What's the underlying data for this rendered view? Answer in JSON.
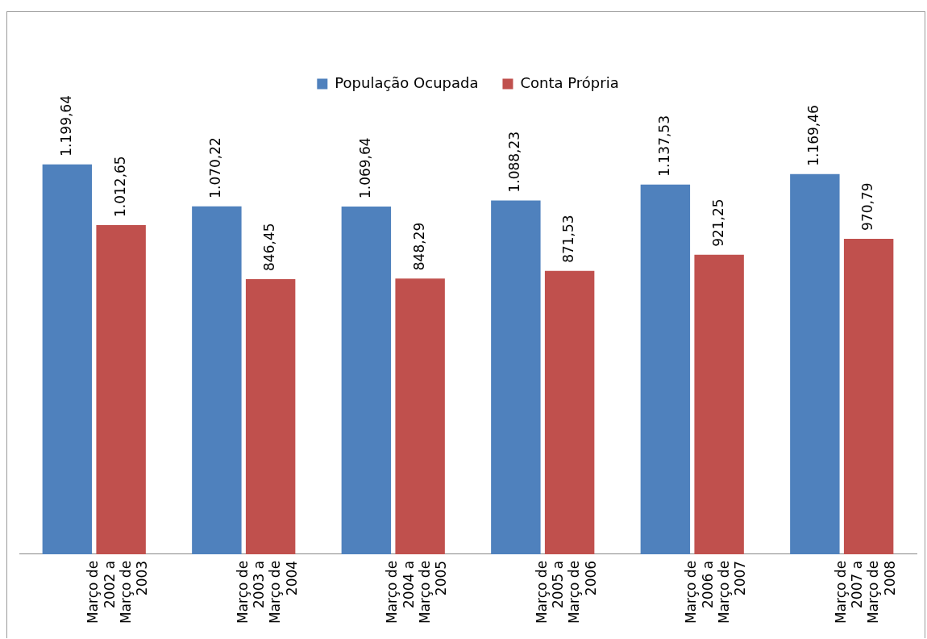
{
  "chart_data": {
    "type": "bar",
    "categories": [
      "Março de 2002 a Março de 2003",
      "Março de 2003 a Março de 2004",
      "Março de 2004 a Março de 2005",
      "Março de 2005 a Março de 2006",
      "Março de 2006 a Março de 2007",
      "Março de 2007 a Março de 2008"
    ],
    "series": [
      {
        "name": "População Ocupada",
        "color": "#4f81bd",
        "values": [
          1199.64,
          1070.22,
          1069.64,
          1088.23,
          1137.53,
          1169.46
        ],
        "value_labels": [
          "1.199,64",
          "1.070,22",
          "1.069,64",
          "1.088,23",
          "1.137,53",
          "1.169,46"
        ]
      },
      {
        "name": "Conta Própria",
        "color": "#c0504d",
        "values": [
          1012.65,
          846.45,
          848.29,
          871.53,
          921.25,
          970.79
        ],
        "value_labels": [
          "1.012,65",
          "846,45",
          "848,29",
          "871,53",
          "921,25",
          "970,79"
        ]
      }
    ],
    "legend": "top",
    "grid": false,
    "tick_labels": "x"
  }
}
